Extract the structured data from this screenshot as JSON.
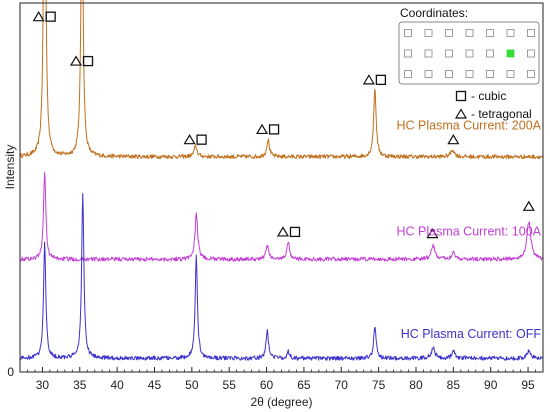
{
  "chart_data": {
    "type": "line",
    "xlabel": "2θ (degree)",
    "ylabel": "Intensity",
    "xlim": [
      27,
      97
    ],
    "x_ticks": [
      30,
      35,
      40,
      45,
      50,
      55,
      60,
      65,
      70,
      75,
      80,
      85,
      90,
      95
    ],
    "y_tick_labels": [
      "0"
    ],
    "grid": false,
    "series": [
      {
        "name": "HC Plasma Current: 200A",
        "color": "#c0701f",
        "baseline": 0.63,
        "noise": 0.006,
        "peaks": [
          {
            "x": 30.3,
            "height": 1.0,
            "width": 0.18
          },
          {
            "x": 35.3,
            "height": 0.76,
            "width": 0.18
          },
          {
            "x": 50.5,
            "height": 0.03,
            "width": 0.25
          },
          {
            "x": 60.2,
            "height": 0.05,
            "width": 0.22
          },
          {
            "x": 74.5,
            "height": 0.2,
            "width": 0.2
          },
          {
            "x": 84.9,
            "height": 0.02,
            "width": 0.3
          }
        ]
      },
      {
        "name": "HC Plasma Current: 100A",
        "color": "#c43fd6",
        "baseline": 0.33,
        "noise": 0.006,
        "peaks": [
          {
            "x": 30.3,
            "height": 0.26,
            "width": 0.18
          },
          {
            "x": 50.6,
            "height": 0.13,
            "width": 0.22
          },
          {
            "x": 60.1,
            "height": 0.04,
            "width": 0.22
          },
          {
            "x": 62.9,
            "height": 0.05,
            "width": 0.22
          },
          {
            "x": 82.3,
            "height": 0.04,
            "width": 0.3
          },
          {
            "x": 85.0,
            "height": 0.02,
            "width": 0.3
          },
          {
            "x": 95.1,
            "height": 0.11,
            "width": 0.32
          }
        ]
      },
      {
        "name": "HC Plasma Current: OFF",
        "color": "#3d32cc",
        "baseline": 0.04,
        "noise": 0.006,
        "peaks": [
          {
            "x": 30.3,
            "height": 0.34,
            "width": 0.18
          },
          {
            "x": 35.4,
            "height": 0.48,
            "width": 0.18
          },
          {
            "x": 50.6,
            "height": 0.3,
            "width": 0.18
          },
          {
            "x": 60.1,
            "height": 0.08,
            "width": 0.2
          },
          {
            "x": 62.9,
            "height": 0.02,
            "width": 0.2
          },
          {
            "x": 74.5,
            "height": 0.09,
            "width": 0.2
          },
          {
            "x": 82.3,
            "height": 0.03,
            "width": 0.3
          },
          {
            "x": 85.0,
            "height": 0.02,
            "width": 0.3
          },
          {
            "x": 95.1,
            "height": 0.02,
            "width": 0.3
          }
        ]
      }
    ],
    "peak_annotations": [
      {
        "x": 30.3,
        "y": 1.04,
        "symbols": [
          "tetragonal",
          "cubic"
        ]
      },
      {
        "x": 35.3,
        "y": 0.91,
        "symbols": [
          "tetragonal",
          "cubic"
        ]
      },
      {
        "x": 50.5,
        "y": 0.68,
        "symbols": [
          "tetragonal",
          "cubic"
        ]
      },
      {
        "x": 60.2,
        "y": 0.71,
        "symbols": [
          "tetragonal",
          "cubic"
        ]
      },
      {
        "x": 74.5,
        "y": 0.855,
        "symbols": [
          "tetragonal",
          "cubic"
        ]
      },
      {
        "x": 63.0,
        "y": 0.41,
        "symbols": [
          "tetragonal",
          "cubic"
        ]
      },
      {
        "x": 82.2,
        "y": 0.405,
        "symbols": [
          "tetragonal"
        ]
      },
      {
        "x": 85.0,
        "y": 0.68,
        "symbols": [
          "tetragonal"
        ]
      },
      {
        "x": 95.1,
        "y": 0.485,
        "symbols": [
          "tetragonal"
        ]
      }
    ],
    "legend": {
      "placement": "top-right",
      "items": [
        {
          "symbol": "cubic",
          "label": "- cubic"
        },
        {
          "symbol": "tetragonal",
          "label": "- tetragonal"
        }
      ]
    },
    "inset": {
      "title": "Coordinates:",
      "rows": 3,
      "cols": 7,
      "highlight_row": 1,
      "highlight_col": 5,
      "highlight_color": "#33dd33"
    }
  }
}
